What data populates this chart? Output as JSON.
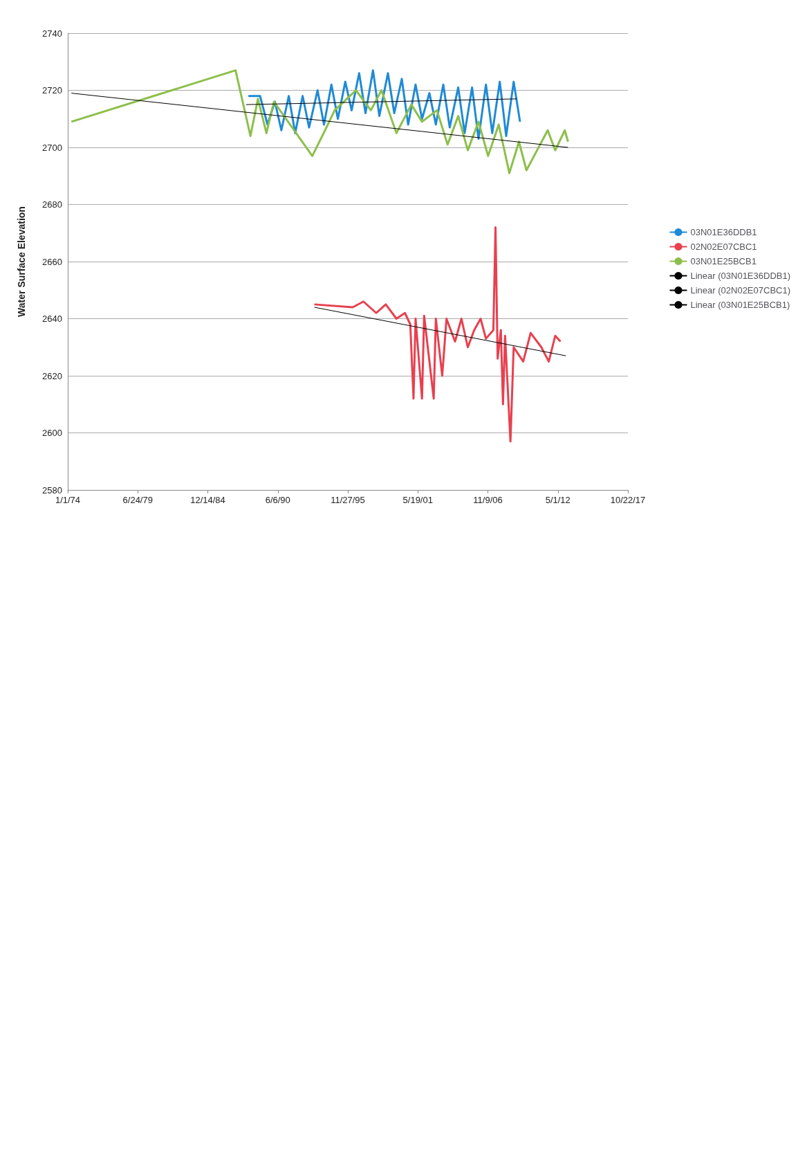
{
  "chart_data": {
    "type": "line",
    "ylabel": "Water Surface Elevation",
    "xlim": [
      "1974-01-01",
      "2017-10-22"
    ],
    "xticks": [
      {
        "value": "1974-01-01",
        "label": "1/1/74"
      },
      {
        "value": "1979-06-24",
        "label": "6/24/79"
      },
      {
        "value": "1984-12-14",
        "label": "12/14/84"
      },
      {
        "value": "1990-06-06",
        "label": "6/6/90"
      },
      {
        "value": "1995-11-27",
        "label": "11/27/95"
      },
      {
        "value": "2001-05-19",
        "label": "5/19/01"
      },
      {
        "value": "2006-11-09",
        "label": "11/9/06"
      },
      {
        "value": "2012-05-01",
        "label": "5/1/12"
      },
      {
        "value": "2017-10-22",
        "label": "10/22/17"
      }
    ],
    "ylim": [
      2580,
      2740
    ],
    "yticks": [
      2580,
      2600,
      2620,
      2640,
      2660,
      2680,
      2700,
      2720,
      2740
    ],
    "grid": "y",
    "legend": "right",
    "marker": "none",
    "line_style": "solid",
    "series": [
      {
        "name": "03N01E36DDB1",
        "color": "#1f8ad6",
        "x": [
          "1988-02",
          "1989-01",
          "1989-08",
          "1990-03",
          "1990-09",
          "1991-04",
          "1991-10",
          "1992-05",
          "1992-11",
          "1993-07",
          "1994-01",
          "1994-08",
          "1995-02",
          "1995-09",
          "1996-03",
          "1996-10",
          "1997-04",
          "1997-11",
          "1998-05",
          "1999-01",
          "1999-07",
          "2000-02",
          "2000-08",
          "2001-03",
          "2001-09",
          "2002-04",
          "2002-10",
          "2003-05",
          "2003-11",
          "2004-07",
          "2005-01",
          "2005-08",
          "2006-02",
          "2006-09",
          "2007-03",
          "2007-10",
          "2008-04",
          "2008-11",
          "2009-05"
        ],
        "values": [
          2718,
          2718,
          2708,
          2716,
          2706,
          2718,
          2705,
          2718,
          2707,
          2720,
          2708,
          2722,
          2710,
          2723,
          2713,
          2726,
          2712,
          2727,
          2711,
          2726,
          2712,
          2724,
          2708,
          2722,
          2710,
          2719,
          2708,
          2722,
          2707,
          2721,
          2705,
          2721,
          2703,
          2722,
          2705,
          2723,
          2704,
          2723,
          2709
        ]
      },
      {
        "name": "02N02E07CBC1",
        "color": "#e8404f",
        "x": [
          "1993-04",
          "1996-04",
          "1997-02",
          "1998-02",
          "1998-11",
          "1999-09",
          "2000-05",
          "2000-10",
          "2001-01",
          "2001-03",
          "2001-09",
          "2001-11",
          "2002-08",
          "2002-10",
          "2003-04",
          "2003-08",
          "2004-04",
          "2004-10",
          "2005-04",
          "2005-10",
          "2006-04",
          "2006-09",
          "2007-04",
          "2007-06",
          "2007-08",
          "2007-11",
          "2008-01",
          "2008-03",
          "2008-08",
          "2008-11",
          "2009-08",
          "2010-03",
          "2011-01",
          "2011-08",
          "2012-02",
          "2012-07"
        ],
        "values": [
          2645,
          2644,
          2646,
          2642,
          2645,
          2640,
          2642,
          2638,
          2612,
          2640,
          2612,
          2641,
          2612,
          2640,
          2620,
          2640,
          2632,
          2640,
          2630,
          2636,
          2640,
          2633,
          2636,
          2672,
          2626,
          2636,
          2610,
          2634,
          2597,
          2630,
          2625,
          2635,
          2630,
          2625,
          2634,
          2632
        ]
      },
      {
        "name": "03N01E25BCB1",
        "color": "#8cbf4a",
        "x": [
          "1974-04",
          "1987-02",
          "1988-04",
          "1988-11",
          "1989-07",
          "1990-02",
          "1993-02",
          "1994-02",
          "1994-11",
          "1996-07",
          "1997-09",
          "1998-07",
          "1999-09",
          "2000-11",
          "2001-09",
          "2002-11",
          "2003-09",
          "2004-07",
          "2005-04",
          "2006-02",
          "2006-11",
          "2007-09",
          "2008-07",
          "2009-04",
          "2009-11",
          "2010-09",
          "2011-07",
          "2012-02",
          "2012-11",
          "2013-02"
        ],
        "values": [
          2709,
          2727,
          2704,
          2717,
          2705,
          2716,
          2697,
          2706,
          2713,
          2720,
          2713,
          2720,
          2705,
          2715,
          2709,
          2713,
          2701,
          2711,
          2699,
          2709,
          2697,
          2708,
          2691,
          2702,
          2692,
          2699,
          2706,
          2699,
          2706,
          2702
        ]
      },
      {
        "name": "Linear (03N01E36DDB1)",
        "color": "#000000",
        "x": [
          "1987-12",
          "2009-02"
        ],
        "values": [
          2715,
          2717
        ]
      },
      {
        "name": "Linear (02N02E07CBC1)",
        "color": "#000000",
        "x": [
          "1993-04",
          "2012-12"
        ],
        "values": [
          2644,
          2627
        ]
      },
      {
        "name": "Linear (03N01E25BCB1)",
        "color": "#000000",
        "x": [
          "1974-04",
          "2013-02"
        ],
        "values": [
          2719,
          2700
        ]
      }
    ]
  }
}
